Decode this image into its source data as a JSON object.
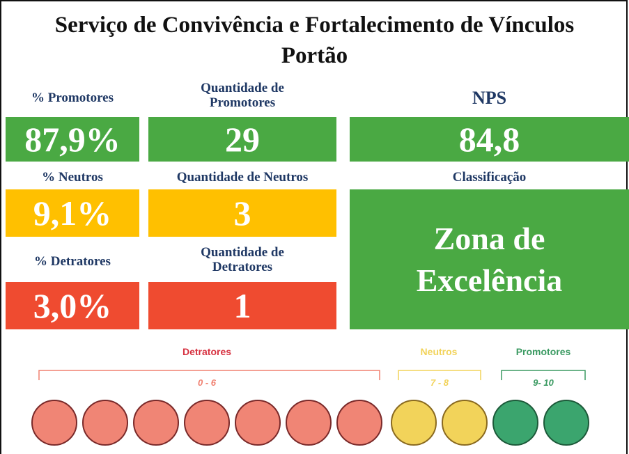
{
  "header": {
    "title": [
      "Serviço de Convivência e Fortalecimento de Vínculos",
      "Portão"
    ]
  },
  "cards": [
    {
      "label": "% Promotores",
      "value": "87,9%"
    },
    {
      "label": "Quantidade de Promotores",
      "value": "29"
    },
    {
      "label": "NPS",
      "value": "84,8"
    },
    {
      "label": "% Neutros",
      "value": "9,1%"
    },
    {
      "label": "Quantidade de Neutros",
      "value": "3"
    },
    {
      "label": "Classificação",
      "value": "Zona de Excelência"
    },
    {
      "label": "% Detratores",
      "value": "3,0%"
    },
    {
      "label": "Quantidade de Detratores",
      "value": "1"
    }
  ],
  "scale": [
    {
      "name": "Detratores",
      "range": "0 - 6"
    },
    {
      "name": "Neutros",
      "range": "7 - 8"
    },
    {
      "name": "Promotores",
      "range": "9- 10"
    }
  ]
}
